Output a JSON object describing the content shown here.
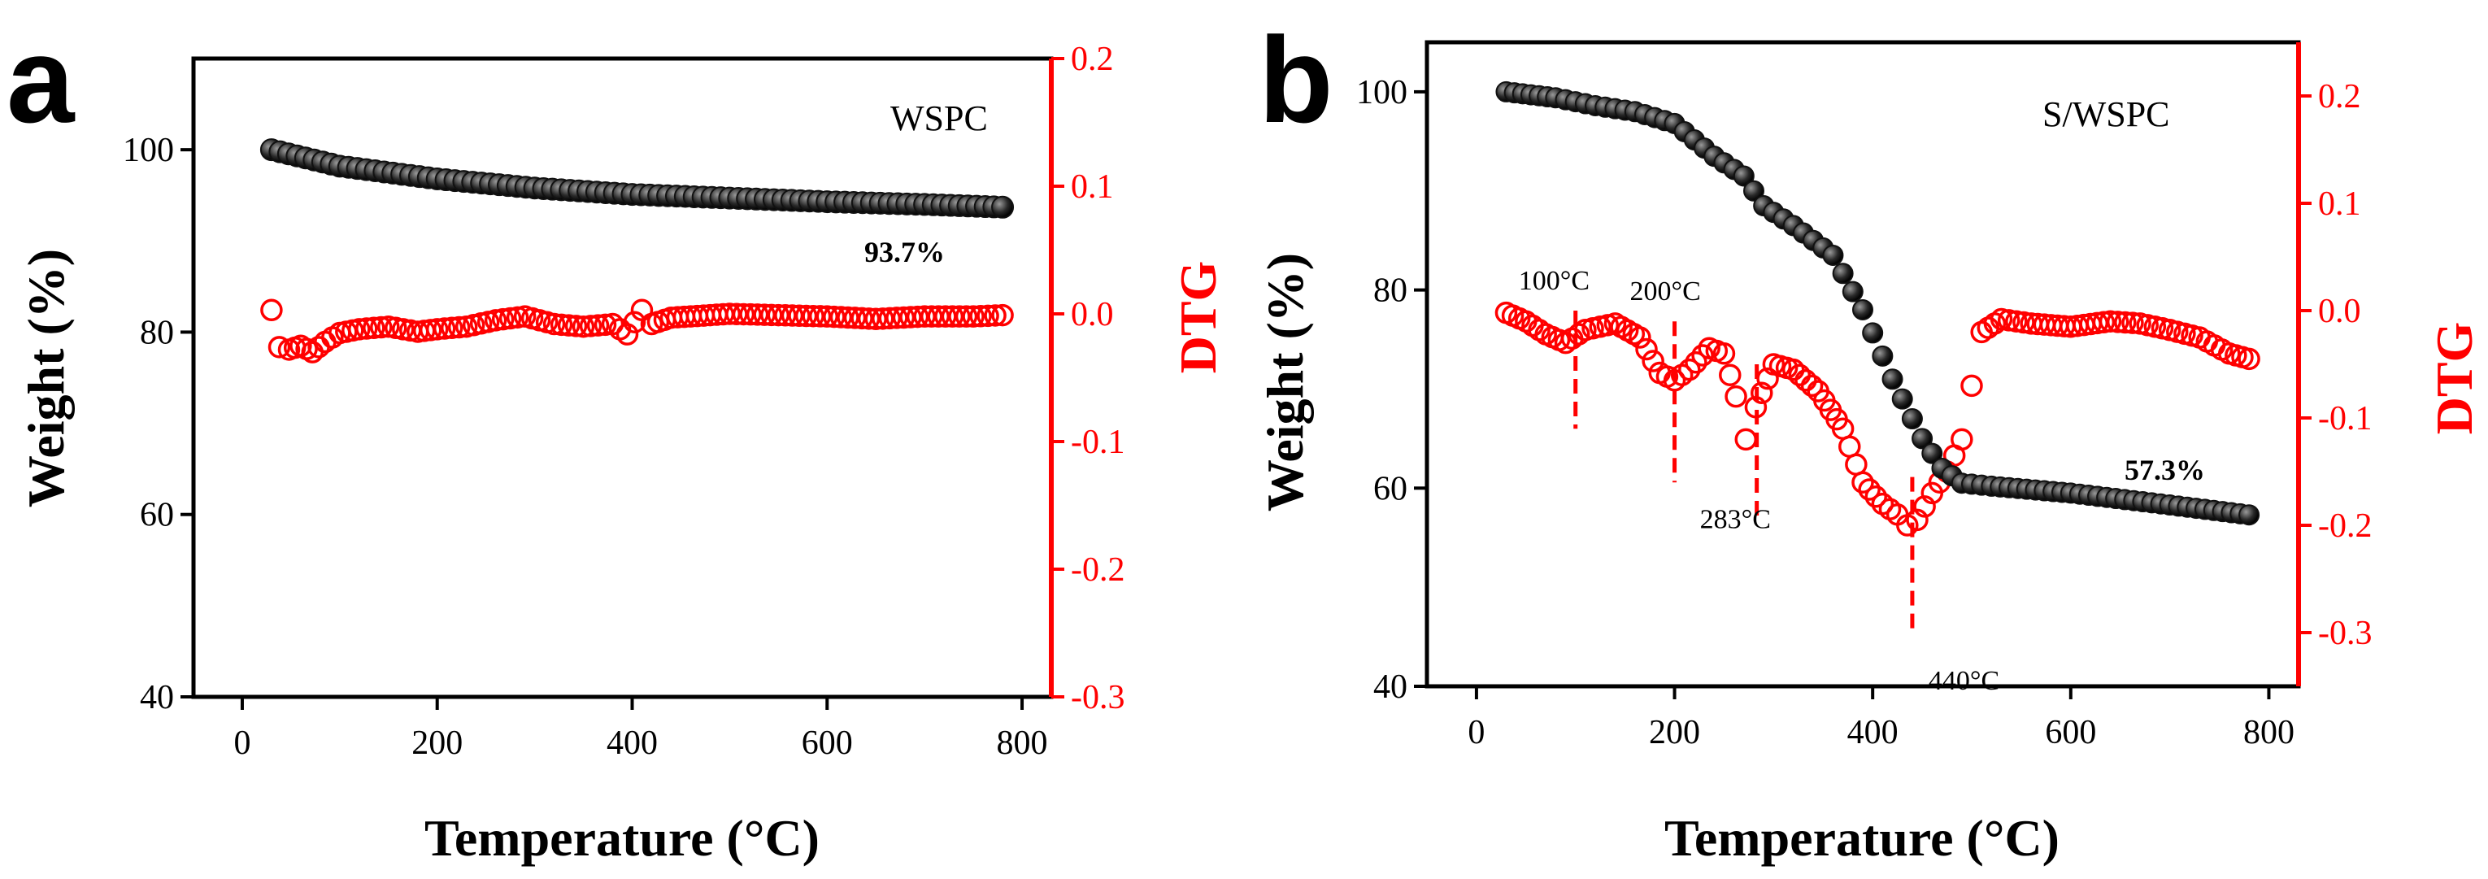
{
  "chart_data": [
    {
      "panel": "a",
      "type": "scatter",
      "sample_label": "WSPC",
      "final_label": "93.7%",
      "xlabel": "Temperature (°C)",
      "ylabel_left": "Weight (%)",
      "ylabel_right": "DTG",
      "xlim": [
        -50,
        830
      ],
      "ylim_left": [
        40,
        110
      ],
      "ylim_right": [
        -0.3,
        0.2
      ],
      "xticks": [
        {
          "v": 0,
          "label": "0"
        },
        {
          "v": 200,
          "label": "200"
        },
        {
          "v": 400,
          "label": "400"
        },
        {
          "v": 600,
          "label": "600"
        },
        {
          "v": 800,
          "label": "800"
        }
      ],
      "yticks_left": [
        {
          "v": 40,
          "label": "40"
        },
        {
          "v": 60,
          "label": "60"
        },
        {
          "v": 80,
          "label": "80"
        },
        {
          "v": 100,
          "label": "100"
        }
      ],
      "yticks_right": [
        {
          "v": -0.3,
          "label": "-0.3"
        },
        {
          "v": -0.2,
          "label": "-0.2"
        },
        {
          "v": -0.1,
          "label": "-0.1"
        },
        {
          "v": 0.0,
          "label": "0.0"
        },
        {
          "v": 0.1,
          "label": "0.1"
        },
        {
          "v": 0.2,
          "label": "0.2"
        }
      ],
      "series": [
        {
          "name": "Weight",
          "axis": "left",
          "color": "#000000",
          "marker": "filled-circle",
          "points": [
            [
              30,
              100
            ],
            [
              100,
              98.2
            ],
            [
              200,
              96.8
            ],
            [
              300,
              95.8
            ],
            [
              400,
              95.1
            ],
            [
              500,
              94.7
            ],
            [
              600,
              94.3
            ],
            [
              700,
              94.0
            ],
            [
              780,
              93.7
            ]
          ]
        },
        {
          "name": "DTG",
          "axis": "right",
          "color": "#ff0000",
          "marker": "open-circle",
          "points": [
            [
              30,
              0.003
            ],
            [
              38,
              -0.026
            ],
            [
              48,
              -0.028
            ],
            [
              60,
              -0.025
            ],
            [
              72,
              -0.03
            ],
            [
              85,
              -0.022
            ],
            [
              100,
              -0.015
            ],
            [
              120,
              -0.012
            ],
            [
              150,
              -0.01
            ],
            [
              180,
              -0.014
            ],
            [
              200,
              -0.012
            ],
            [
              230,
              -0.01
            ],
            [
              260,
              -0.005
            ],
            [
              290,
              -0.002
            ],
            [
              320,
              -0.008
            ],
            [
              350,
              -0.01
            ],
            [
              380,
              -0.008
            ],
            [
              395,
              -0.016
            ],
            [
              410,
              0.003
            ],
            [
              420,
              -0.008
            ],
            [
              440,
              -0.003
            ],
            [
              460,
              -0.002
            ],
            [
              500,
              0.0
            ],
            [
              550,
              -0.001
            ],
            [
              600,
              -0.002
            ],
            [
              650,
              -0.004
            ],
            [
              700,
              -0.002
            ],
            [
              750,
              -0.002
            ],
            [
              780,
              -0.001
            ]
          ]
        }
      ]
    },
    {
      "panel": "b",
      "type": "scatter",
      "sample_label": "S/WSPC",
      "final_label": "57.3%",
      "xlabel": "Temperature (°C)",
      "ylabel_left": "Weight (%)",
      "ylabel_right": "DTG",
      "xlim": [
        -50,
        830
      ],
      "ylim_left": [
        40,
        105
      ],
      "ylim_right": [
        -0.35,
        0.25
      ],
      "xticks": [
        {
          "v": 0,
          "label": "0"
        },
        {
          "v": 200,
          "label": "200"
        },
        {
          "v": 400,
          "label": "400"
        },
        {
          "v": 600,
          "label": "600"
        },
        {
          "v": 800,
          "label": "800"
        }
      ],
      "yticks_left": [
        {
          "v": 40,
          "label": "40"
        },
        {
          "v": 60,
          "label": "60"
        },
        {
          "v": 80,
          "label": "80"
        },
        {
          "v": 100,
          "label": "100"
        }
      ],
      "yticks_right": [
        {
          "v": -0.3,
          "label": "-0.3"
        },
        {
          "v": -0.2,
          "label": "-0.2"
        },
        {
          "v": -0.1,
          "label": "-0.1"
        },
        {
          "v": 0.0,
          "label": "0.0"
        },
        {
          "v": 0.1,
          "label": "0.1"
        },
        {
          "v": 0.2,
          "label": "0.2"
        }
      ],
      "series": [
        {
          "name": "Weight",
          "axis": "left",
          "color": "#000000",
          "marker": "filled-circle",
          "points": [
            [
              30,
              100
            ],
            [
              80,
              99.4
            ],
            [
              120,
              98.6
            ],
            [
              160,
              98
            ],
            [
              200,
              96.8
            ],
            [
              240,
              93.5
            ],
            [
              270,
              91.5
            ],
            [
              290,
              88.5
            ],
            [
              320,
              86.5
            ],
            [
              360,
              83.5
            ],
            [
              390,
              78
            ],
            [
              420,
              71
            ],
            [
              450,
              65
            ],
            [
              470,
              62
            ],
            [
              490,
              60.5
            ],
            [
              520,
              60.2
            ],
            [
              600,
              59.5
            ],
            [
              700,
              58.3
            ],
            [
              780,
              57.3
            ]
          ]
        },
        {
          "name": "DTG",
          "axis": "right",
          "color": "#ff0000",
          "marker": "open-circle",
          "points": [
            [
              30,
              -0.002
            ],
            [
              50,
              -0.01
            ],
            [
              70,
              -0.022
            ],
            [
              90,
              -0.03
            ],
            [
              110,
              -0.018
            ],
            [
              140,
              -0.012
            ],
            [
              165,
              -0.025
            ],
            [
              185,
              -0.058
            ],
            [
              200,
              -0.065
            ],
            [
              215,
              -0.055
            ],
            [
              235,
              -0.035
            ],
            [
              250,
              -0.04
            ],
            [
              262,
              -0.08
            ],
            [
              272,
              -0.12
            ],
            [
              282,
              -0.09
            ],
            [
              300,
              -0.05
            ],
            [
              320,
              -0.055
            ],
            [
              345,
              -0.075
            ],
            [
              370,
              -0.11
            ],
            [
              390,
              -0.16
            ],
            [
              410,
              -0.18
            ],
            [
              425,
              -0.19
            ],
            [
              435,
              -0.2
            ],
            [
              445,
              -0.195
            ],
            [
              460,
              -0.17
            ],
            [
              475,
              -0.15
            ],
            [
              490,
              -0.12
            ],
            [
              500,
              -0.07
            ],
            [
              510,
              -0.02
            ],
            [
              530,
              -0.008
            ],
            [
              560,
              -0.012
            ],
            [
              600,
              -0.015
            ],
            [
              640,
              -0.01
            ],
            [
              670,
              -0.012
            ],
            [
              700,
              -0.018
            ],
            [
              730,
              -0.025
            ],
            [
              760,
              -0.04
            ],
            [
              780,
              -0.045
            ]
          ]
        }
      ],
      "annotations": [
        {
          "temperature": 100,
          "label": "100°C",
          "line_from": 0.0,
          "line_to": -0.11
        },
        {
          "temperature": 200,
          "label": "200°C",
          "line_from": -0.01,
          "line_to": -0.16
        },
        {
          "temperature": 283,
          "label": "283°C",
          "line_from": -0.05,
          "line_to": -0.195
        },
        {
          "temperature": 440,
          "label": "440°C",
          "line_from": -0.155,
          "line_to": -0.3
        }
      ]
    }
  ]
}
